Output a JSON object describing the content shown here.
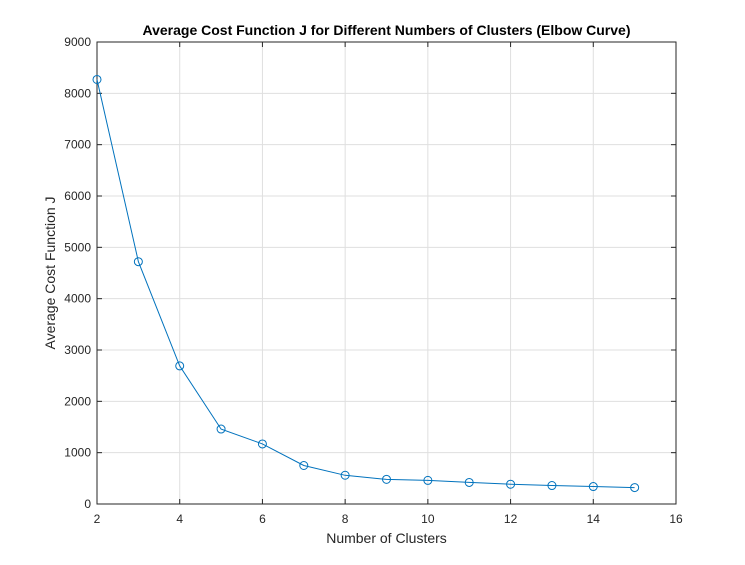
{
  "chart_data": {
    "type": "line",
    "title": "Average Cost Function J for Different Numbers of Clusters (Elbow Curve)",
    "xlabel": "Number of Clusters",
    "ylabel": "Average Cost Function J",
    "xlim": [
      2,
      16
    ],
    "ylim": [
      0,
      9000
    ],
    "xticks": [
      2,
      4,
      6,
      8,
      10,
      12,
      14,
      16
    ],
    "yticks": [
      0,
      1000,
      2000,
      3000,
      4000,
      5000,
      6000,
      7000,
      8000,
      9000
    ],
    "grid": true,
    "marker": "circle",
    "color": "#0072BD",
    "series": [
      {
        "x": [
          2,
          3,
          4,
          5,
          6,
          7,
          8,
          9,
          10,
          11,
          12,
          13,
          14,
          15
        ],
        "values": [
          8270,
          4720,
          2690,
          1460,
          1170,
          750,
          560,
          480,
          460,
          420,
          385,
          360,
          340,
          320
        ]
      }
    ]
  }
}
